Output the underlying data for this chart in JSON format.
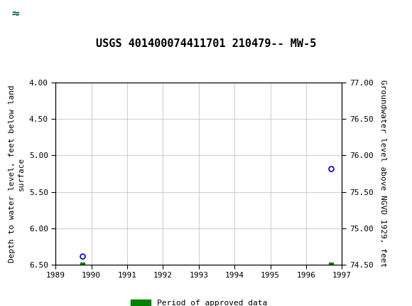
{
  "title": "USGS 401400074411701 210479-- MW-5",
  "title_fontsize": 11,
  "background_color": "#ffffff",
  "header_color": "#006633",
  "plot_bg_color": "#ffffff",
  "left_ylabel": "Depth to water level, feet below land\nsurface",
  "right_ylabel": "Groundwater level above NGVD 1929, feet",
  "xlim": [
    1989,
    1997
  ],
  "xticks": [
    1989,
    1990,
    1991,
    1992,
    1993,
    1994,
    1995,
    1996,
    1997
  ],
  "ylim_left": [
    4.0,
    6.5
  ],
  "ylim_right": [
    74.5,
    77.0
  ],
  "yticks_left": [
    4.0,
    4.5,
    5.0,
    5.5,
    6.0,
    6.5
  ],
  "yticks_right": [
    74.5,
    75.0,
    75.5,
    76.0,
    76.5,
    77.0
  ],
  "data_points": [
    {
      "x": 1989.75,
      "y_left": 6.38,
      "color": "#0000bb"
    },
    {
      "x": 1996.7,
      "y_left": 5.18,
      "color": "#0000bb"
    }
  ],
  "green_markers": [
    {
      "x": 1989.75,
      "y_left": 6.5
    },
    {
      "x": 1996.7,
      "y_left": 6.5
    }
  ],
  "grid_color": "#cccccc",
  "marker_size": 5,
  "legend_label": "Period of approved data",
  "legend_color": "#008000",
  "font_family": "monospace",
  "tick_fontsize": 8,
  "ylabel_fontsize": 8
}
